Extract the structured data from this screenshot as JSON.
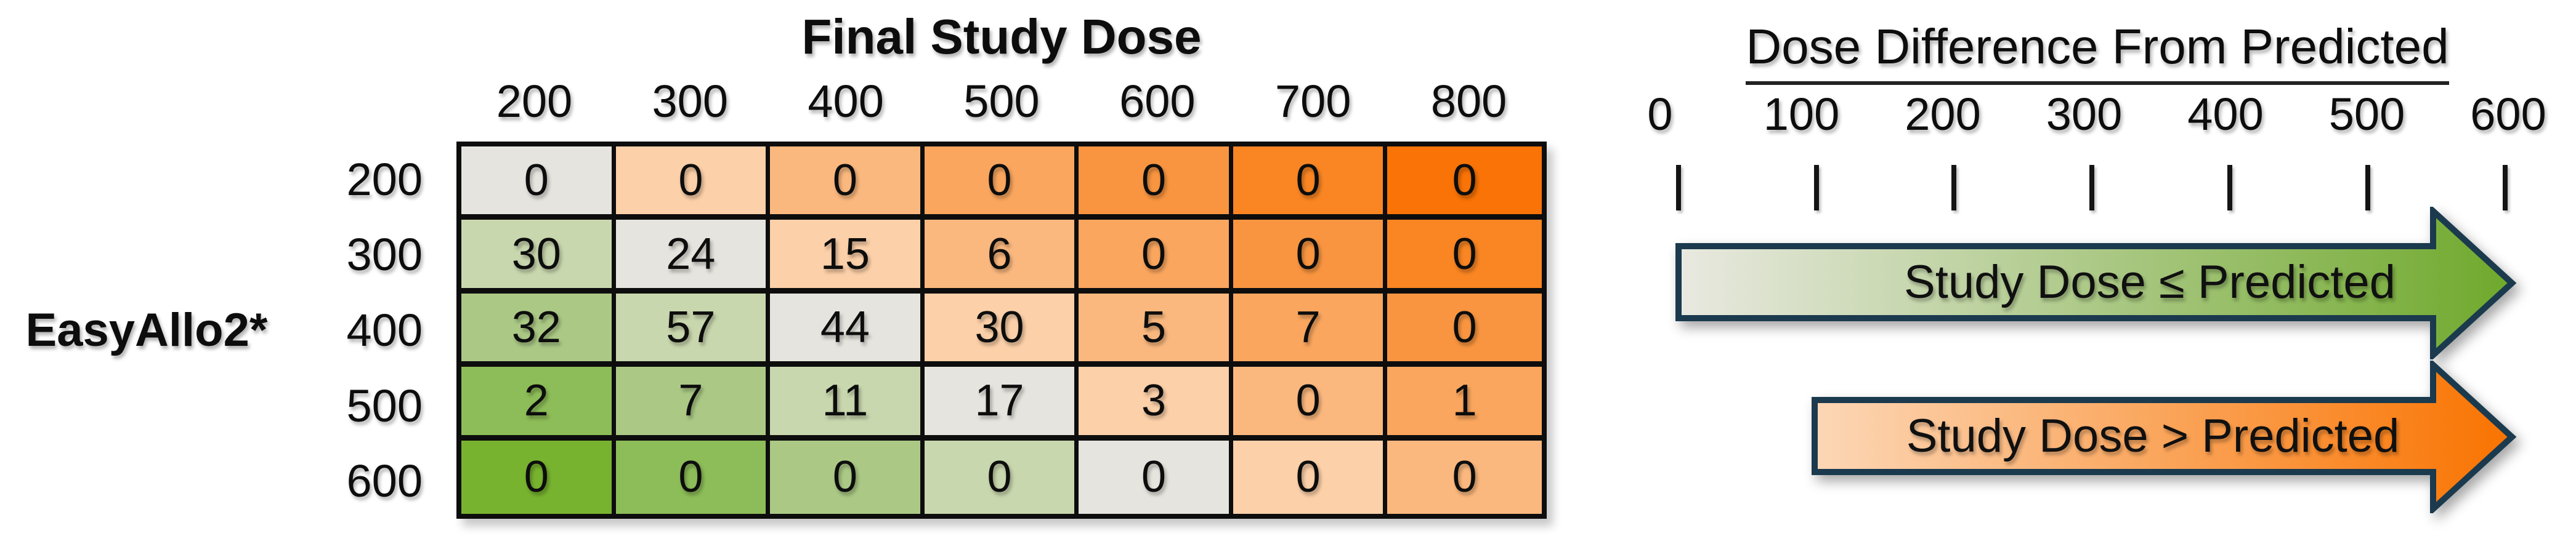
{
  "matrix": {
    "title": "Final Study Dose",
    "row_axis_label": "EasyAllo2*",
    "col_headers": [
      "200",
      "300",
      "400",
      "500",
      "600",
      "700",
      "800"
    ],
    "row_headers": [
      "200",
      "300",
      "400",
      "500",
      "600"
    ],
    "rows": [
      [
        0,
        0,
        0,
        0,
        0,
        0,
        0
      ],
      [
        30,
        24,
        15,
        6,
        0,
        0,
        0
      ],
      [
        32,
        57,
        44,
        30,
        5,
        7,
        0
      ],
      [
        2,
        7,
        11,
        17,
        3,
        0,
        1
      ],
      [
        0,
        0,
        0,
        0,
        0,
        0,
        0
      ]
    ]
  },
  "legend": {
    "title": "Dose Difference From Predicted",
    "scale_labels": [
      "0",
      "100",
      "200",
      "300",
      "400",
      "500",
      "600"
    ],
    "green_arrow_label": "Study Dose ≤ Predicted",
    "orange_arrow_label": "Study Dose > Predicted"
  },
  "colors": {
    "diff": {
      "-400": "#77b32f",
      "-300": "#8dbd58",
      "-200": "#abc985",
      "-100": "#c9d7ae",
      "0": "#e5e4de",
      "100": "#fcd0a8",
      "200": "#fbb87e",
      "300": "#faa65e",
      "400": "#f99540",
      "500": "#f98523",
      "600": "#f97306"
    },
    "green_arrow": {
      "start": "#e9e9e1",
      "end": "#6fa92c"
    },
    "orange_arrow": {
      "start": "#fcd7b6",
      "end": "#f97300"
    },
    "arrow_border": "#1b3a4e"
  },
  "chart_data": {
    "type": "heatmap",
    "title": "Final Study Dose",
    "x_axis_label": "Final Study Dose",
    "y_axis_label": "EasyAllo2*",
    "x_categories": [
      200,
      300,
      400,
      500,
      600,
      700,
      800
    ],
    "y_categories": [
      200,
      300,
      400,
      500,
      600
    ],
    "values": [
      [
        0,
        0,
        0,
        0,
        0,
        0,
        0
      ],
      [
        30,
        24,
        15,
        6,
        0,
        0,
        0
      ],
      [
        32,
        57,
        44,
        30,
        5,
        7,
        0
      ],
      [
        2,
        7,
        11,
        17,
        3,
        0,
        1
      ],
      [
        0,
        0,
        0,
        0,
        0,
        0,
        0
      ]
    ],
    "color_encoding": "Cell color encodes dose difference from predicted (final study dose minus EasyAllo2* predicted dose): gray = 0, green shades = study dose ≤ predicted (difference 100-400), orange shades = study dose > predicted (difference 100-600); darker = larger difference",
    "legend": {
      "title": "Dose Difference From Predicted",
      "scale_ticks": [
        0,
        100,
        200,
        300,
        400,
        500,
        600
      ],
      "series": [
        {
          "name": "Study Dose ≤ Predicted",
          "color_ramp": [
            "#e9e9e1",
            "#6fa92c"
          ]
        },
        {
          "name": "Study Dose > Predicted",
          "color_ramp": [
            "#fcd7b6",
            "#f97300"
          ]
        }
      ],
      "legend_position": "right"
    },
    "grid": true
  }
}
